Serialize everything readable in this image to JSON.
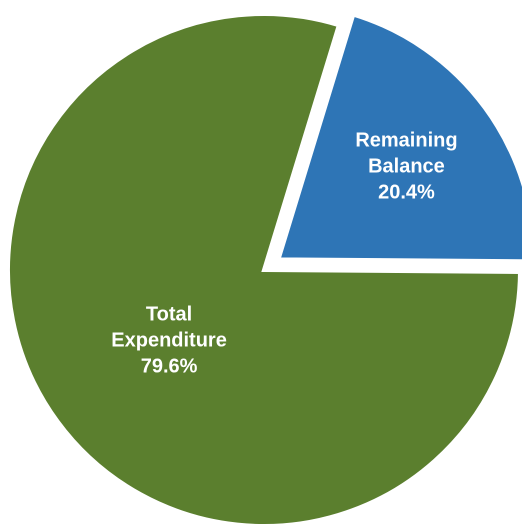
{
  "chart_data": {
    "type": "pie",
    "title": "",
    "legend": "none",
    "start_angle_deg": 17,
    "slices": [
      {
        "name": "Remaining Balance",
        "label_lines": [
          "Remaining",
          "Balance"
        ],
        "value": 20.4,
        "value_label": "20.4%",
        "color": "#2e75b6",
        "exploded": true
      },
      {
        "name": "Total Expenditure",
        "label_lines": [
          "Total",
          "Expenditure"
        ],
        "value": 79.6,
        "value_label": "79.6%",
        "color": "#5b7f2e",
        "exploded": false
      }
    ]
  }
}
